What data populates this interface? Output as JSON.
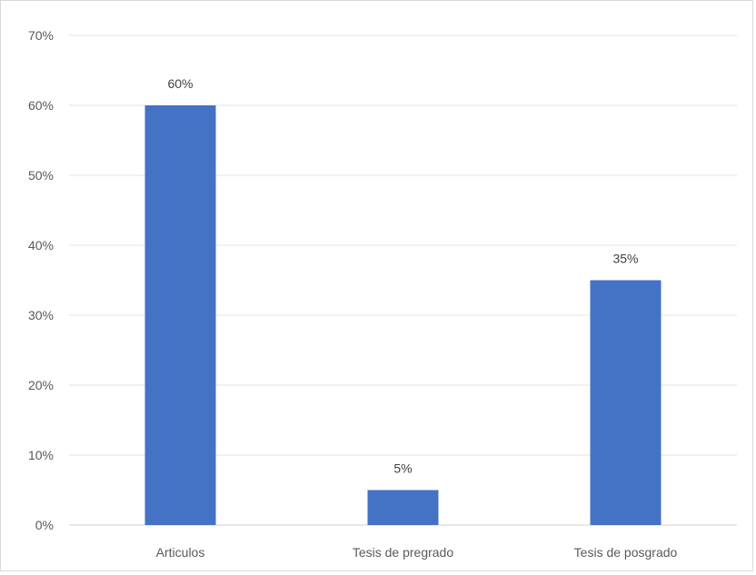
{
  "chart_data": {
    "type": "bar",
    "categories": [
      "Articulos",
      "Tesis de pregrado",
      "Tesis de posgrado"
    ],
    "values": [
      60,
      5,
      35
    ],
    "data_labels": [
      "60%",
      "5%",
      "35%"
    ],
    "y_ticks": [
      "0%",
      "10%",
      "20%",
      "30%",
      "40%",
      "50%",
      "60%",
      "70%"
    ],
    "ylim": [
      0,
      70
    ],
    "grid": true,
    "bar_color": "#4472c4",
    "title": "",
    "xlabel": "",
    "ylabel": ""
  }
}
